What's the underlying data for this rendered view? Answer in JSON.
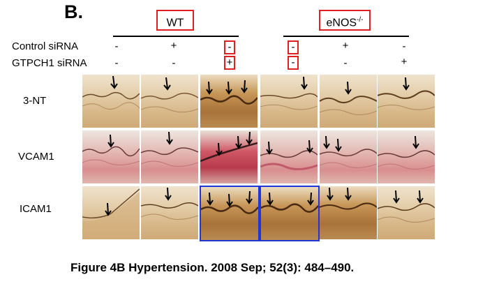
{
  "figure": {
    "panel_letter": "B.",
    "groups": [
      {
        "label": "WT",
        "sup": ""
      },
      {
        "label": "eNOS",
        "sup": "-/-"
      }
    ],
    "treatments": [
      {
        "label": "Control siRNA",
        "signs": [
          "-",
          "+",
          "-",
          "-",
          "+",
          "-"
        ]
      },
      {
        "label": "GTPCH1 siRNA",
        "signs": [
          "-",
          "-",
          "+",
          "-",
          "-",
          "+"
        ]
      }
    ],
    "stains": [
      "3-NT",
      "VCAM1",
      "ICAM1"
    ],
    "caption": "Figure 4B Hypertension. 2008 Sep; 52(3): 484–490.",
    "colors": {
      "highlight_red": "#e02020",
      "highlight_blue": "#1f37d8",
      "arrow": "#000000"
    }
  }
}
